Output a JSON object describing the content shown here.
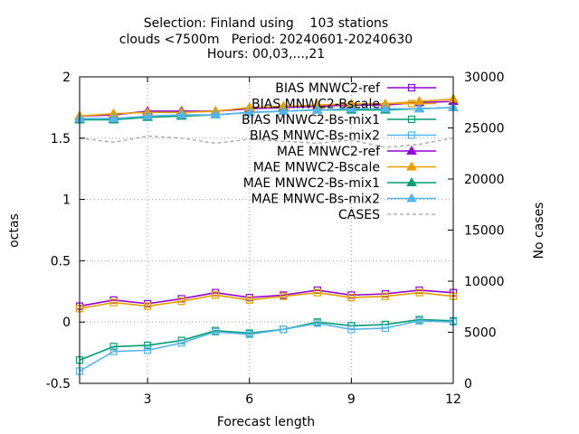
{
  "chart_data": {
    "type": "line",
    "title_lines": [
      "Selection: Finland using    103 stations",
      "clouds <7500m   Period: 20240601-20240630",
      "Hours: 00,03,...,21"
    ],
    "xlabel": "Forecast length",
    "ylabel": "octas",
    "y2label": "No cases",
    "xlim": [
      1,
      12
    ],
    "ylim": [
      -0.5,
      2
    ],
    "y2lim": [
      0,
      30000
    ],
    "xticks": [
      3,
      6,
      9,
      12
    ],
    "yticks": [
      -0.5,
      0,
      0.5,
      1,
      1.5,
      2
    ],
    "yticklabels": [
      "-0.5",
      "0",
      "0.5",
      "1",
      "1.5",
      "2"
    ],
    "y2ticks": [
      0,
      5000,
      10000,
      15000,
      20000,
      25000,
      30000
    ],
    "grid": true,
    "legend_position": "top-right",
    "x": [
      1,
      2,
      3,
      4,
      5,
      6,
      7,
      8,
      9,
      10,
      11,
      12
    ],
    "series": [
      {
        "name": "BIAS MNWC2-ref",
        "color": "#9400d3",
        "marker": "square",
        "axis": "y",
        "values": [
          0.13,
          0.18,
          0.15,
          0.19,
          0.24,
          0.2,
          0.22,
          0.26,
          0.22,
          0.23,
          0.26,
          0.24
        ]
      },
      {
        "name": "BIAS MNWC2-Bscale",
        "color": "#e69f00",
        "marker": "square",
        "axis": "y",
        "values": [
          0.11,
          0.16,
          0.13,
          0.17,
          0.22,
          0.18,
          0.21,
          0.24,
          0.2,
          0.21,
          0.24,
          0.21
        ]
      },
      {
        "name": "BIAS MNWC2-Bs-mix1",
        "color": "#009e73",
        "marker": "square",
        "axis": "y",
        "values": [
          -0.31,
          -0.2,
          -0.19,
          -0.15,
          -0.07,
          -0.09,
          -0.06,
          0.0,
          -0.03,
          -0.02,
          0.02,
          0.01
        ]
      },
      {
        "name": "BIAS MNWC-Bs-mix2",
        "color": "#56b4e9",
        "marker": "square",
        "axis": "y",
        "values": [
          -0.4,
          -0.24,
          -0.23,
          -0.17,
          -0.08,
          -0.1,
          -0.06,
          -0.01,
          -0.06,
          -0.05,
          0.01,
          0.0
        ]
      },
      {
        "name": "MAE MNWC2-ref",
        "color": "#9400d3",
        "marker": "triangle",
        "axis": "y",
        "values": [
          1.68,
          1.69,
          1.72,
          1.72,
          1.72,
          1.74,
          1.75,
          1.76,
          1.77,
          1.77,
          1.79,
          1.8
        ]
      },
      {
        "name": "MAE MNWC2-Bscale",
        "color": "#e69f00",
        "marker": "triangle",
        "axis": "y",
        "values": [
          1.68,
          1.7,
          1.71,
          1.71,
          1.72,
          1.75,
          1.76,
          1.77,
          1.78,
          1.78,
          1.8,
          1.82
        ]
      },
      {
        "name": "MAE MNWC2-Bs-mix1",
        "color": "#009e73",
        "marker": "triangle",
        "axis": "y",
        "values": [
          1.65,
          1.65,
          1.67,
          1.68,
          1.69,
          1.71,
          1.72,
          1.73,
          1.73,
          1.73,
          1.74,
          1.75
        ]
      },
      {
        "name": "MAE MNWC-Bs-mix2",
        "color": "#56b4e9",
        "marker": "triangle",
        "axis": "y",
        "values": [
          1.66,
          1.66,
          1.68,
          1.69,
          1.69,
          1.71,
          1.72,
          1.73,
          1.74,
          1.74,
          1.74,
          1.75
        ]
      },
      {
        "name": "CASES",
        "color": "#a0a0a0",
        "marker": "none",
        "dash": true,
        "axis": "y2",
        "values": [
          24000,
          23600,
          24200,
          24000,
          23500,
          23900,
          23700,
          23500,
          23800,
          23100,
          23400,
          24000
        ]
      }
    ]
  }
}
